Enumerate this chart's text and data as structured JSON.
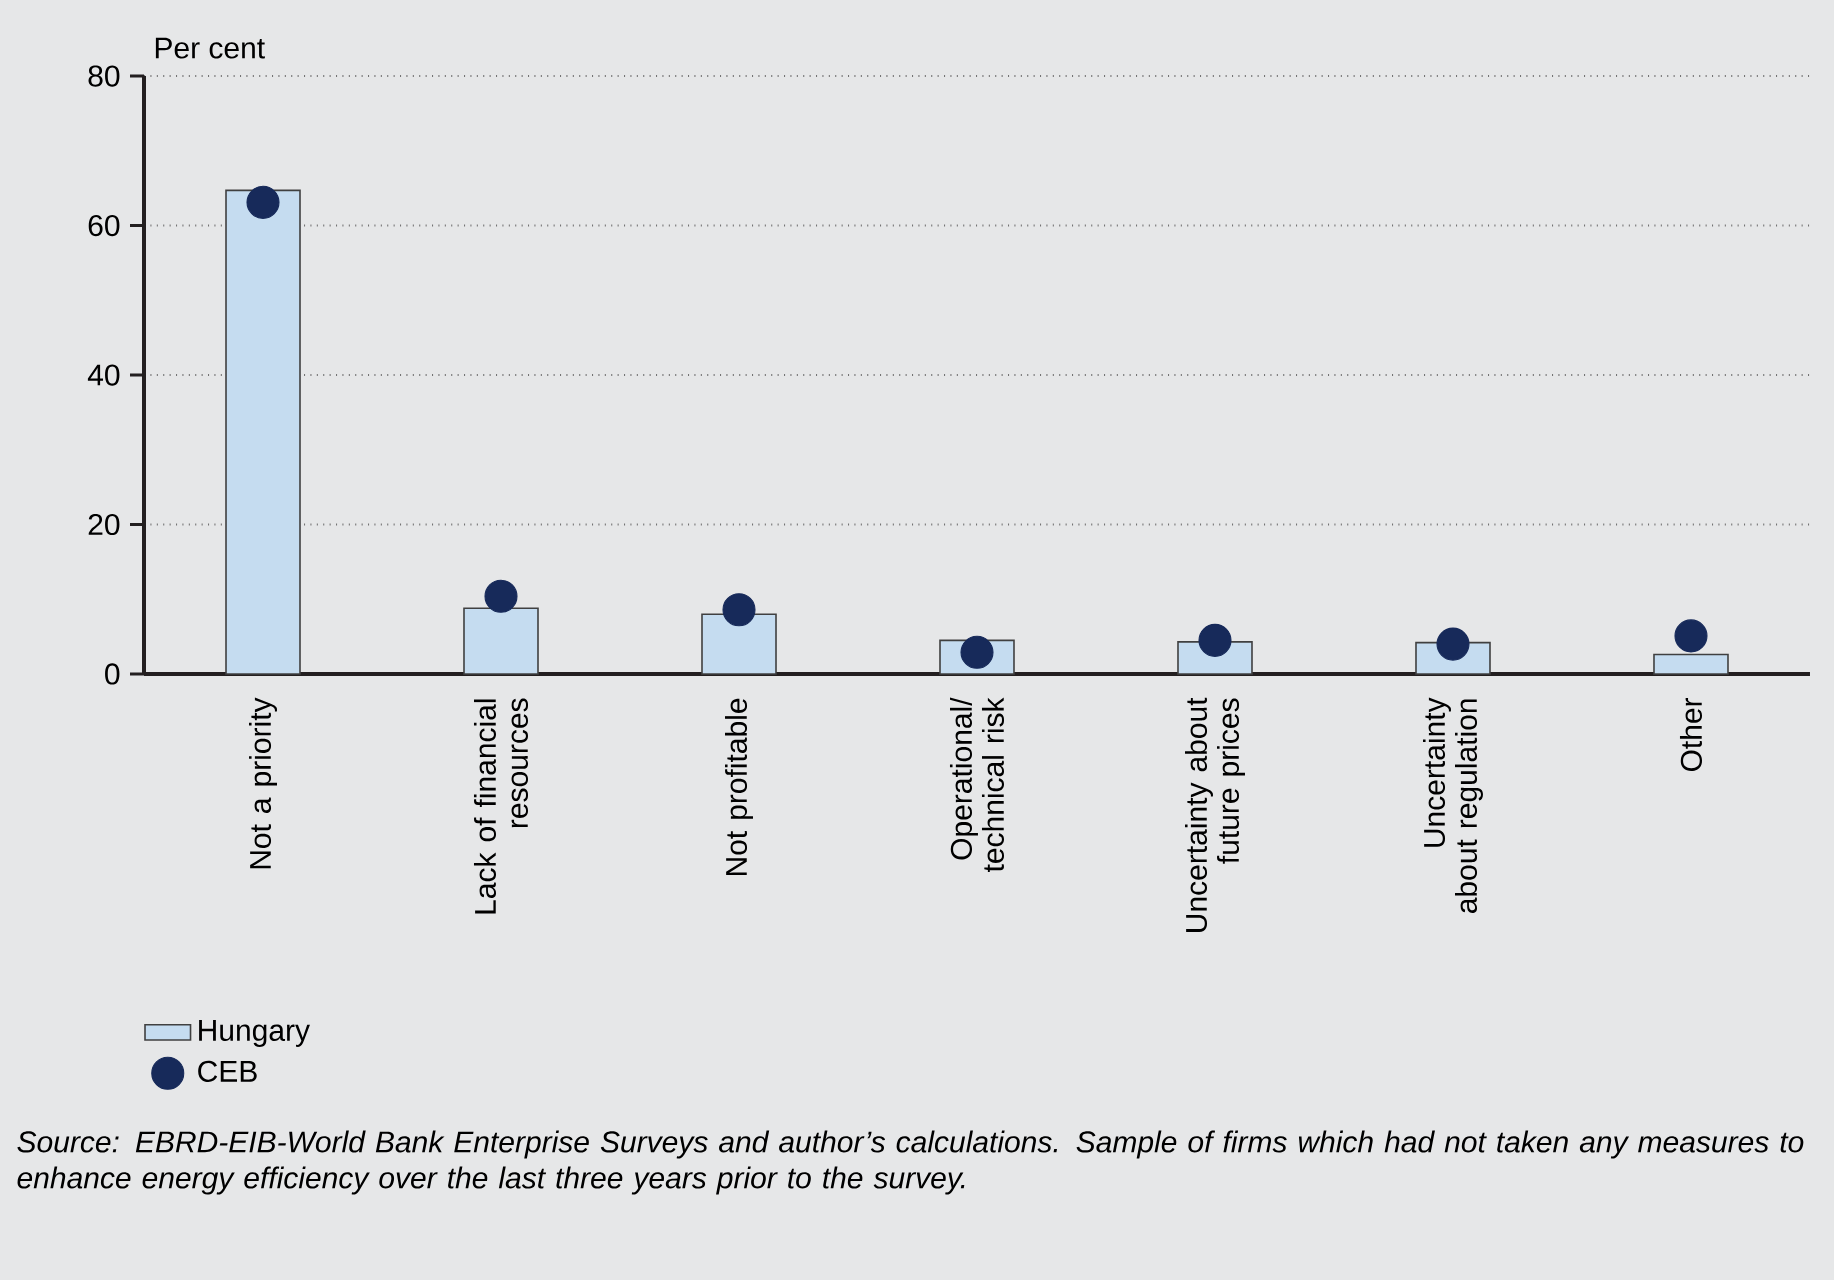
{
  "chart_data": {
    "type": "bar",
    "ylabel": "Per cent",
    "categories": [
      "Not a priority",
      "Lack of financial resources",
      "Not profitable",
      "Operational/ technical risk",
      "Uncertainty about future prices",
      "Uncertainty about regulation",
      "Other"
    ],
    "series": [
      {
        "name": "Hungary",
        "type": "bar",
        "color": "#c5dcf0",
        "values": [
          64.7,
          8.8,
          8.0,
          4.5,
          4.3,
          4.2,
          2.6
        ]
      },
      {
        "name": "CEB",
        "type": "scatter",
        "color": "#172a5a",
        "x": [
          "Not a priority",
          "Lack of financial resources",
          "Not profitable",
          "Operational/ technical risk",
          "Uncertainty about future prices",
          "Uncertainty about regulation",
          "Other"
        ],
        "values": [
          63.1,
          10.4,
          8.6,
          2.9,
          4.5,
          4.0,
          5.1
        ]
      }
    ],
    "ylim": [
      0,
      80
    ],
    "yticks": [
      0,
      20,
      40,
      60,
      80
    ],
    "grid": "y",
    "legend": "bottom left",
    "annotations": [
      "Source: EBRD-EIB-World Bank Enterprise Surveys and author’s calculations. Sample of firms which had not taken any measures to enhance energy efficiency over the last three years prior to the survey."
    ]
  }
}
